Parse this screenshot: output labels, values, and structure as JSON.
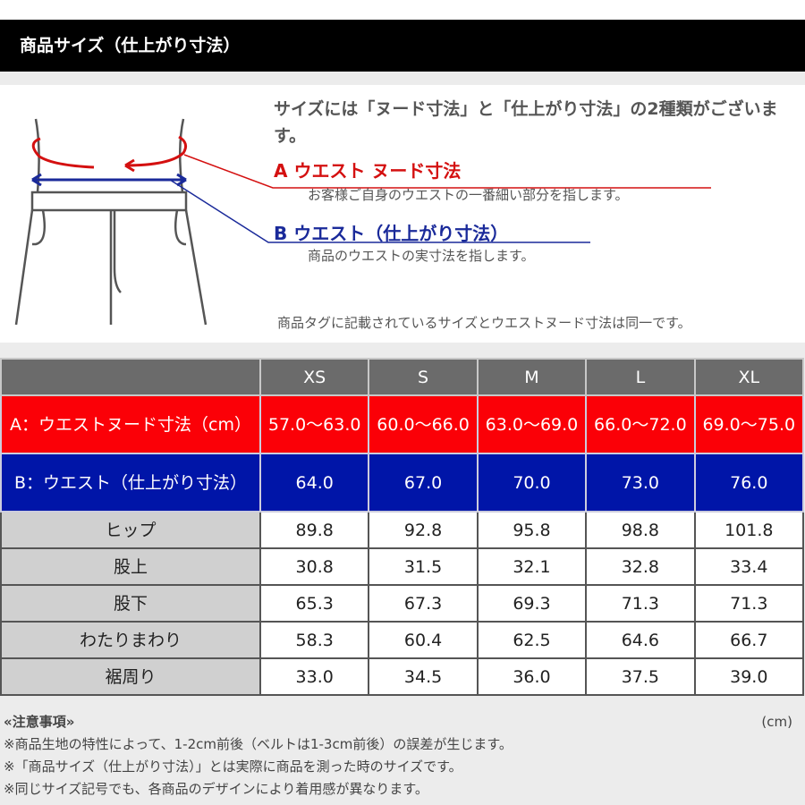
{
  "header": {
    "title": "商品サイズ（仕上がり寸法）"
  },
  "diagram": {
    "intro": "サイズには「ヌード寸法」と「仕上がり寸法」の2種類がございます。",
    "a_label": "A ウエスト ヌード寸法",
    "a_desc": "お客様ご自身のウエストの一番細い部分を指します。",
    "b_label": "B ウエスト（仕上がり寸法）",
    "b_desc": "商品のウエストの実寸法を指します。",
    "tag_note": "商品タグに記載されているサイズとウエストヌード寸法は同一です。",
    "colors": {
      "a": "#d41010",
      "b": "#1a2a9a"
    }
  },
  "table": {
    "sizes": [
      "XS",
      "S",
      "M",
      "L",
      "XL"
    ],
    "rows": [
      {
        "label": "A：ウエストヌード寸法（cm）",
        "values": [
          "57.0〜63.0",
          "60.0〜66.0",
          "63.0〜69.0",
          "66.0〜72.0",
          "69.0〜75.0"
        ]
      },
      {
        "label": "B：ウエスト（仕上がり寸法）",
        "values": [
          "64.0",
          "67.0",
          "70.0",
          "73.0",
          "76.0"
        ]
      },
      {
        "label": "ヒップ",
        "values": [
          "89.8",
          "92.8",
          "95.8",
          "98.8",
          "101.8"
        ]
      },
      {
        "label": "股上",
        "values": [
          "30.8",
          "31.5",
          "32.1",
          "32.8",
          "33.4"
        ]
      },
      {
        "label": "股下",
        "values": [
          "65.3",
          "67.3",
          "69.3",
          "71.3",
          "71.3"
        ]
      },
      {
        "label": "わたりまわり",
        "values": [
          "58.3",
          "60.4",
          "62.5",
          "64.6",
          "66.7"
        ]
      },
      {
        "label": "裾周り",
        "values": [
          "33.0",
          "34.5",
          "36.0",
          "37.5",
          "39.0"
        ]
      }
    ],
    "colors": {
      "a_row": "#fb0007",
      "b_row": "#0015a8",
      "header": "#6b6b6b"
    }
  },
  "notes": {
    "title": "«注意事項»",
    "unit": "(cm)",
    "items": [
      "※商品生地の特性によって、1-2cm前後（ベルトは1-3cm前後）の誤差が生じます。",
      "※「商品サイズ（仕上がり寸法）」とは実際に商品を測った時のサイズです。",
      "※同じサイズ記号でも、各商品のデザインにより着用感が異なります。"
    ]
  }
}
